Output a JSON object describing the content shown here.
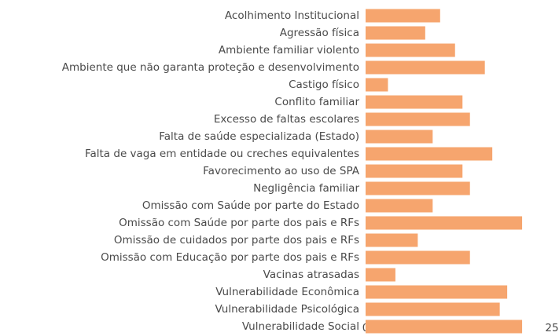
{
  "chart_data": {
    "type": "barh",
    "categories": [
      "Acolhimento Institucional",
      "Agressão física",
      "Ambiente familiar violento",
      "Ambiente que não garanta proteção e desenvolvimento",
      "Castigo físico",
      "Conflito familiar",
      "Excesso de faltas escolares",
      "Falta de saúde especializada (Estado)",
      "Falta de vaga em entidade ou creches equivalentes",
      "Favorecimento ao uso de SPA",
      "Negligência familiar",
      "Omissão com Saúde por parte do Estado",
      "Omissão com Saúde por parte dos pais e RFs",
      "Omissão de cuidados por parte dos pais e RFs",
      "Omissão com Educação por parte dos pais e RFs",
      "Vacinas atrasadas",
      "Vulnerabilidade Econômica",
      "Vulnerabilidade Psicológica",
      "Vulnerabilidade Social"
    ],
    "values": [
      10,
      8,
      12,
      16,
      3,
      13,
      14,
      9,
      17,
      13,
      14,
      9,
      21,
      7,
      14,
      4,
      19,
      18,
      21
    ],
    "color": "#f6a56e",
    "xlim": [
      0,
      25
    ],
    "xticks": [
      0,
      5,
      10,
      15,
      20,
      25
    ],
    "grid": false
  }
}
